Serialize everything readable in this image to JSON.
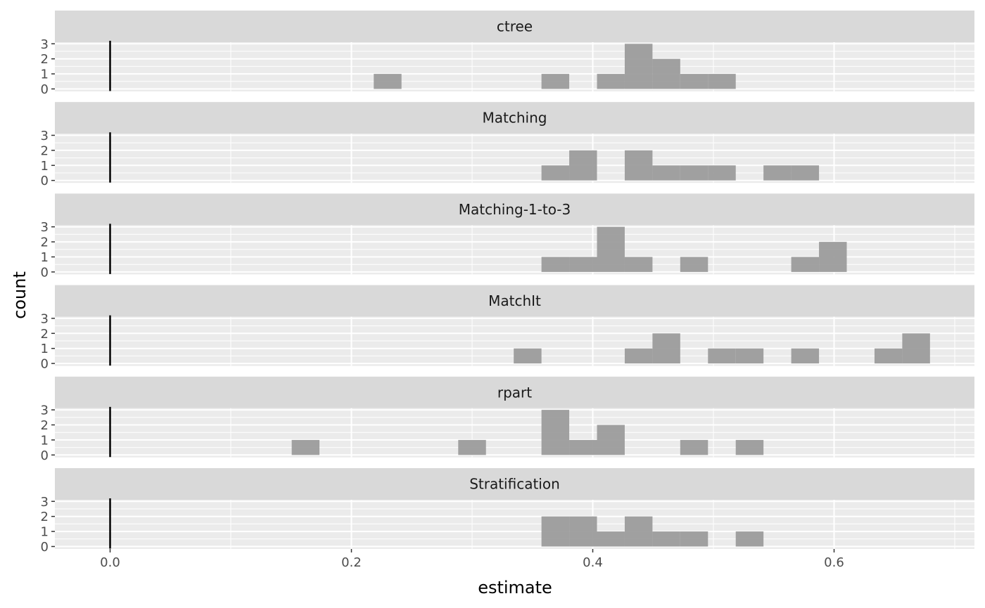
{
  "chart_data": {
    "type": "bar",
    "chart_kind": "faceted histogram",
    "xlabel": "estimate",
    "ylabel": "count",
    "xlim": [
      -0.045,
      0.715
    ],
    "ylim": [
      -0.14,
      3.2
    ],
    "x_ticks": [
      0.0,
      0.2,
      0.4,
      0.6
    ],
    "x_tick_labels": [
      "0.0",
      "0.2",
      "0.4",
      "0.6"
    ],
    "x_minor_ticks": [
      0.1,
      0.3,
      0.5,
      0.7
    ],
    "y_ticks": [
      0,
      1,
      2,
      3
    ],
    "y_tick_labels": [
      "0",
      "1",
      "2",
      "3"
    ],
    "binwidth": 0.023,
    "reference_line_x": 0,
    "grid": true,
    "bar_color": "#999999",
    "panel_background": "#ebebeb",
    "strip_background": "#d9d9d9",
    "facets": [
      {
        "name": "ctree",
        "bins": [
          {
            "x": 0.23,
            "count": 1
          },
          {
            "x": 0.369,
            "count": 1
          },
          {
            "x": 0.415,
            "count": 1
          },
          {
            "x": 0.438,
            "count": 3
          },
          {
            "x": 0.461,
            "count": 2
          },
          {
            "x": 0.484,
            "count": 1
          },
          {
            "x": 0.507,
            "count": 1
          }
        ]
      },
      {
        "name": "Matching",
        "bins": [
          {
            "x": 0.369,
            "count": 1
          },
          {
            "x": 0.392,
            "count": 2
          },
          {
            "x": 0.438,
            "count": 2
          },
          {
            "x": 0.461,
            "count": 1
          },
          {
            "x": 0.484,
            "count": 1
          },
          {
            "x": 0.507,
            "count": 1
          },
          {
            "x": 0.553,
            "count": 1
          },
          {
            "x": 0.576,
            "count": 1
          }
        ]
      },
      {
        "name": "Matching-1-to-3",
        "bins": [
          {
            "x": 0.369,
            "count": 1
          },
          {
            "x": 0.392,
            "count": 1
          },
          {
            "x": 0.415,
            "count": 3
          },
          {
            "x": 0.438,
            "count": 1
          },
          {
            "x": 0.484,
            "count": 1
          },
          {
            "x": 0.576,
            "count": 1
          },
          {
            "x": 0.599,
            "count": 2
          }
        ]
      },
      {
        "name": "MatchIt",
        "bins": [
          {
            "x": 0.346,
            "count": 1
          },
          {
            "x": 0.438,
            "count": 1
          },
          {
            "x": 0.461,
            "count": 2
          },
          {
            "x": 0.507,
            "count": 1
          },
          {
            "x": 0.53,
            "count": 1
          },
          {
            "x": 0.576,
            "count": 1
          },
          {
            "x": 0.645,
            "count": 1
          },
          {
            "x": 0.668,
            "count": 2
          }
        ]
      },
      {
        "name": "rpart",
        "bins": [
          {
            "x": 0.162,
            "count": 1
          },
          {
            "x": 0.3,
            "count": 1
          },
          {
            "x": 0.369,
            "count": 3
          },
          {
            "x": 0.392,
            "count": 1
          },
          {
            "x": 0.415,
            "count": 2
          },
          {
            "x": 0.484,
            "count": 1
          },
          {
            "x": 0.53,
            "count": 1
          }
        ]
      },
      {
        "name": "Stratification",
        "bins": [
          {
            "x": 0.369,
            "count": 2
          },
          {
            "x": 0.392,
            "count": 2
          },
          {
            "x": 0.415,
            "count": 1
          },
          {
            "x": 0.438,
            "count": 2
          },
          {
            "x": 0.461,
            "count": 1
          },
          {
            "x": 0.484,
            "count": 1
          },
          {
            "x": 0.53,
            "count": 1
          }
        ]
      }
    ]
  }
}
